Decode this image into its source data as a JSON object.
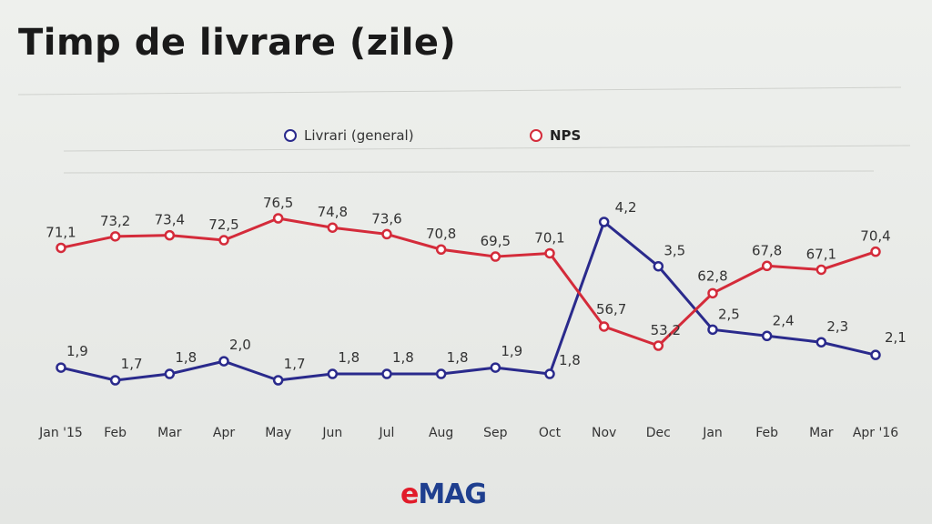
{
  "title": "Timp de livrare (zile)",
  "legend": {
    "series1": "Livrari (general)",
    "series2": "NPS"
  },
  "logo": {
    "e": "e",
    "mag": "MAG"
  },
  "colors": {
    "series1": "#2a2a8c",
    "series2": "#d42b3a",
    "grid": "#c8cac6",
    "text": "#333333"
  },
  "chart_data": {
    "type": "line",
    "title": "Timp de livrare (zile)",
    "categories": [
      "Jan '15",
      "Feb",
      "Mar",
      "Apr",
      "May",
      "Jun",
      "Jul",
      "Aug",
      "Sep",
      "Oct",
      "Nov",
      "Dec",
      "Jan",
      "Feb",
      "Mar",
      "Apr '16"
    ],
    "series": [
      {
        "name": "Livrari (general)",
        "values": [
          1.9,
          1.7,
          1.8,
          2.0,
          1.7,
          1.8,
          1.8,
          1.8,
          1.9,
          1.8,
          4.2,
          3.5,
          2.5,
          2.4,
          2.3,
          2.1
        ],
        "labels": [
          "1,9",
          "1,7",
          "1,8",
          "2,0",
          "1,7",
          "1,8",
          "1,8",
          "1,8",
          "1,9",
          "1,8",
          "4,2",
          "3,5",
          "2,5",
          "2,4",
          "2,3",
          "2,1"
        ]
      },
      {
        "name": "NPS",
        "values": [
          71.1,
          73.2,
          73.4,
          72.5,
          76.5,
          74.8,
          73.6,
          70.8,
          69.5,
          70.1,
          56.7,
          53.2,
          62.8,
          67.8,
          67.1,
          70.4
        ],
        "labels": [
          "71,1",
          "73,2",
          "73,4",
          "72,5",
          "76,5",
          "74,8",
          "73,6",
          "70,8",
          "69,5",
          "70,1",
          "56,7",
          "53,2",
          "62,8",
          "67,8",
          "67,1",
          "70,4"
        ]
      }
    ],
    "legend_position": "top-center",
    "grid": false
  }
}
